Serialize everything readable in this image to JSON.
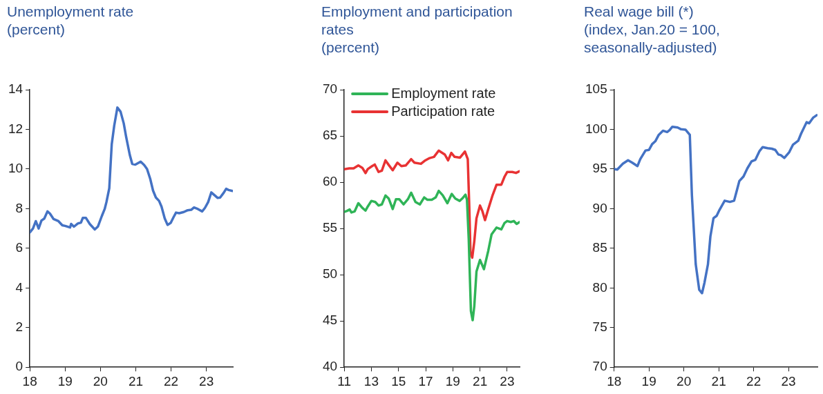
{
  "chart_data": [
    {
      "type": "line",
      "title": "Unemployment rate",
      "subtitle": "(percent)",
      "marker": "none",
      "xlim": [
        18,
        23.75
      ],
      "xticks": [
        18,
        19,
        20,
        21,
        22,
        23
      ],
      "ylim": [
        0,
        14
      ],
      "yticks": [
        0,
        2,
        4,
        6,
        8,
        10,
        12,
        14
      ],
      "series": [
        {
          "color": "#4472c4",
          "x": [
            18.0,
            18.09,
            18.17,
            18.25,
            18.33,
            18.41,
            18.5,
            18.57,
            18.67,
            18.81,
            18.92,
            19.0,
            19.14,
            19.17,
            19.25,
            19.36,
            19.45,
            19.5,
            19.59,
            19.7,
            19.84,
            19.93,
            20.04,
            20.12,
            20.17,
            20.25,
            20.32,
            20.39,
            20.48,
            20.57,
            20.66,
            20.73,
            20.83,
            20.9,
            20.99,
            21.14,
            21.24,
            21.32,
            21.41,
            21.49,
            21.57,
            21.66,
            21.73,
            21.82,
            21.9,
            21.99,
            22.07,
            22.14,
            22.23,
            22.36,
            22.47,
            22.57,
            22.65,
            22.76,
            22.88,
            22.96,
            23.05,
            23.14,
            23.23,
            23.32,
            23.39,
            23.49,
            23.56,
            23.63,
            23.74
          ],
          "values": [
            6.8,
            7.0,
            7.37,
            7.0,
            7.4,
            7.5,
            7.86,
            7.75,
            7.48,
            7.37,
            7.16,
            7.13,
            7.05,
            7.23,
            7.09,
            7.25,
            7.3,
            7.53,
            7.53,
            7.22,
            6.95,
            7.1,
            7.63,
            7.98,
            8.33,
            9.03,
            11.25,
            12.18,
            13.1,
            12.89,
            12.3,
            11.6,
            10.72,
            10.26,
            10.22,
            10.37,
            10.2,
            10.0,
            9.5,
            8.91,
            8.56,
            8.39,
            8.1,
            7.51,
            7.18,
            7.28,
            7.57,
            7.8,
            7.77,
            7.83,
            7.92,
            7.94,
            8.06,
            7.98,
            7.86,
            8.04,
            8.33,
            8.82,
            8.68,
            8.54,
            8.56,
            8.8,
            9.0,
            8.94,
            8.89
          ]
        }
      ]
    },
    {
      "type": "line",
      "title": "Employment and participation rates",
      "subtitle": "(percent)",
      "marker": "none",
      "legend": "top left",
      "xlim": [
        11,
        23.92
      ],
      "xticks": [
        11,
        13,
        15,
        17,
        19,
        21,
        23
      ],
      "ylim": [
        40,
        70
      ],
      "yticks": [
        40,
        45,
        50,
        55,
        60,
        65,
        70
      ],
      "series": [
        {
          "name": "Employment rate",
          "color": "#2fb457",
          "x": [
            11.0,
            11.21,
            11.4,
            11.53,
            11.77,
            12.04,
            12.33,
            12.57,
            12.73,
            13.0,
            13.29,
            13.53,
            13.77,
            14.04,
            14.28,
            14.57,
            14.81,
            15.05,
            15.37,
            15.69,
            15.93,
            16.25,
            16.57,
            16.89,
            17.13,
            17.45,
            17.74,
            17.96,
            18.25,
            18.6,
            18.92,
            19.18,
            19.5,
            19.69,
            19.93,
            20.04,
            20.17,
            20.33,
            20.46,
            20.58,
            20.74,
            21.0,
            21.29,
            21.61,
            21.85,
            22.22,
            22.57,
            22.81,
            23.0,
            23.27,
            23.49,
            23.7,
            23.92
          ],
          "values": [
            56.8,
            56.9,
            57.05,
            56.73,
            56.85,
            57.73,
            57.23,
            56.93,
            57.36,
            57.98,
            57.86,
            57.48,
            57.6,
            58.56,
            58.23,
            57.1,
            58.16,
            58.16,
            57.6,
            58.16,
            58.86,
            57.86,
            57.6,
            58.36,
            58.1,
            58.1,
            58.36,
            59.06,
            58.6,
            57.73,
            58.73,
            58.23,
            57.98,
            58.23,
            58.66,
            58.1,
            53.85,
            46.09,
            45.08,
            46.59,
            50.34,
            51.6,
            50.6,
            52.6,
            54.35,
            55.1,
            54.9,
            55.6,
            55.8,
            55.7,
            55.8,
            55.5,
            55.7
          ]
        },
        {
          "name": "Participation rate",
          "color": "#e83233",
          "x": [
            11.0,
            11.37,
            11.69,
            12.04,
            12.33,
            12.57,
            12.73,
            13.05,
            13.25,
            13.53,
            13.77,
            14.04,
            14.28,
            14.57,
            14.92,
            15.21,
            15.53,
            15.93,
            16.17,
            16.65,
            16.97,
            17.29,
            17.61,
            17.96,
            18.41,
            18.65,
            18.89,
            19.13,
            19.53,
            19.89,
            20.1,
            20.21,
            20.3,
            20.43,
            20.58,
            20.74,
            21.0,
            21.18,
            21.37,
            21.61,
            21.93,
            22.22,
            22.57,
            22.81,
            23.0,
            23.38,
            23.65,
            23.92
          ],
          "values": [
            61.41,
            61.49,
            61.49,
            61.81,
            61.56,
            60.99,
            61.41,
            61.74,
            61.91,
            61.11,
            61.24,
            62.36,
            61.86,
            61.29,
            62.11,
            61.74,
            61.81,
            62.49,
            62.11,
            61.99,
            62.36,
            62.61,
            62.74,
            63.42,
            62.99,
            62.36,
            63.17,
            62.74,
            62.66,
            63.32,
            62.49,
            57.36,
            52.35,
            51.85,
            53.6,
            56.1,
            57.48,
            56.86,
            55.9,
            57.1,
            58.6,
            59.73,
            59.73,
            60.6,
            61.1,
            61.1,
            61.0,
            61.2
          ]
        }
      ]
    },
    {
      "type": "line",
      "title": "Real wage bill (*)",
      "subtitle": "(index, Jan.20 = 100, seasonally-adjusted)",
      "marker": "none",
      "xlim": [
        18,
        23.83
      ],
      "xticks": [
        18,
        19,
        20,
        21,
        22,
        23
      ],
      "ylim": [
        70,
        105
      ],
      "yticks": [
        70,
        75,
        80,
        85,
        90,
        95,
        100,
        105
      ],
      "series": [
        {
          "color": "#4472c4",
          "x": [
            18.0,
            18.09,
            18.25,
            18.4,
            18.52,
            18.67,
            18.75,
            18.9,
            19.0,
            19.09,
            19.18,
            19.28,
            19.4,
            19.52,
            19.59,
            19.67,
            19.82,
            19.92,
            20.05,
            20.17,
            20.23,
            20.34,
            20.44,
            20.52,
            20.59,
            20.69,
            20.76,
            20.85,
            20.94,
            21.02,
            21.17,
            21.32,
            21.44,
            21.52,
            21.59,
            21.71,
            21.82,
            21.94,
            22.05,
            22.17,
            22.26,
            22.4,
            22.52,
            22.62,
            22.71,
            22.78,
            22.88,
            23.02,
            23.13,
            23.28,
            23.36,
            23.52,
            23.59,
            23.71,
            23.81
          ],
          "values": [
            95.0,
            94.93,
            95.66,
            96.1,
            95.8,
            95.37,
            96.25,
            97.33,
            97.41,
            98.14,
            98.49,
            99.31,
            99.83,
            99.66,
            99.9,
            100.33,
            100.24,
            100.01,
            99.95,
            99.31,
            91.73,
            82.98,
            79.77,
            79.33,
            80.65,
            82.98,
            86.48,
            88.81,
            89.1,
            89.83,
            91.0,
            90.85,
            91.0,
            92.31,
            93.48,
            94.06,
            95.08,
            95.96,
            96.16,
            97.27,
            97.76,
            97.62,
            97.56,
            97.41,
            96.83,
            96.74,
            96.39,
            97.12,
            98.08,
            98.58,
            99.45,
            100.91,
            100.76,
            101.49,
            101.79
          ]
        }
      ]
    }
  ]
}
